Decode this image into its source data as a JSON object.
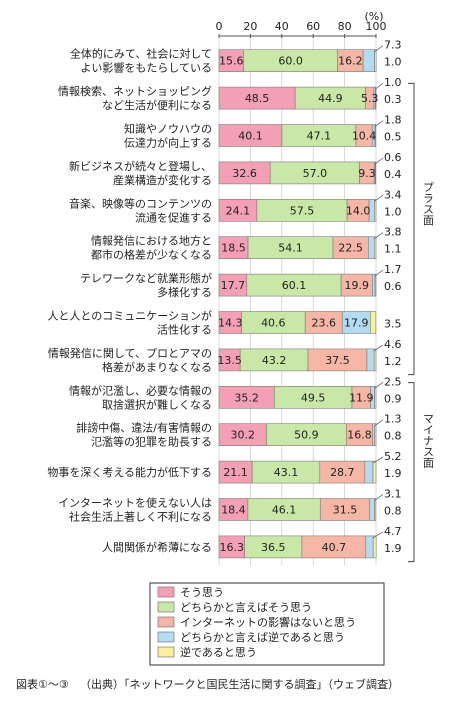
{
  "chart_data": {
    "type": "bar",
    "orientation": "horizontal",
    "stacked": true,
    "axis_unit": "(%)",
    "xlim": [
      0,
      100
    ],
    "x_ticks": [
      0,
      20,
      40,
      60,
      80,
      100
    ],
    "categories": [
      [
        "全体的にみて、社会に対して",
        "よい影響をもたらしている"
      ],
      [
        "情報検索、ネットショッピング",
        "など生活が便利になる"
      ],
      [
        "知識やノウハウの",
        "伝達力が向上する"
      ],
      [
        "新ビジネスが続々と登場し、",
        "産業構造が変化する"
      ],
      [
        "音楽、映像等のコンテンツの",
        "流通を促進する"
      ],
      [
        "情報発信における地方と",
        "都市の格差が少なくなる"
      ],
      [
        "テレワークなど就業形態が",
        "多様化する"
      ],
      [
        "人と人とのコミュニケーションが",
        "活性化する"
      ],
      [
        "情報発信に関して、プロとアマの",
        "格差があまりなくなる"
      ],
      [
        "情報が氾濫し、必要な情報の",
        "取捨選択が難しくなる"
      ],
      [
        "誹謗中傷、違法/有害情報の",
        "氾濫等の犯罪を助長する"
      ],
      [
        "物事を深く考える能力が低下する"
      ],
      [
        "インターネットを使えない人は",
        "社会生活上著しく不利になる"
      ],
      [
        "人間関係が希薄になる"
      ]
    ],
    "series": [
      {
        "name": "そう思う",
        "color": "#f4a0b4",
        "values": [
          15.6,
          48.5,
          40.1,
          32.6,
          24.1,
          18.5,
          17.7,
          14.3,
          13.5,
          35.2,
          30.2,
          21.1,
          18.4,
          16.3
        ]
      },
      {
        "name": "どちらかと言えばそう思う",
        "color": "#c9e8a8",
        "values": [
          60.0,
          44.9,
          47.1,
          57.0,
          57.5,
          54.1,
          60.1,
          40.6,
          43.2,
          49.5,
          50.9,
          43.1,
          46.1,
          36.5
        ]
      },
      {
        "name": "インターネットの影響はないと思う",
        "color": "#f6b6a6",
        "values": [
          16.2,
          5.3,
          10.4,
          9.3,
          14.0,
          22.5,
          19.9,
          23.6,
          37.5,
          11.9,
          16.8,
          28.7,
          31.5,
          40.7
        ]
      },
      {
        "name": "どちらかと言えば逆であると思う",
        "color": "#b4dcf0",
        "values": [
          7.3,
          1.0,
          1.8,
          0.6,
          3.4,
          3.8,
          1.7,
          17.9,
          4.6,
          2.5,
          1.3,
          5.2,
          3.1,
          4.7
        ]
      },
      {
        "name": "逆であると思う",
        "color": "#f8f0a0",
        "values": [
          1.0,
          0.3,
          0.5,
          0.4,
          1.0,
          1.1,
          0.6,
          3.5,
          1.2,
          0.9,
          0.8,
          1.9,
          0.8,
          1.9
        ]
      }
    ],
    "value_labels": [
      [
        "15.6",
        "60.0",
        "16.2",
        "7.3",
        "1.0"
      ],
      [
        "48.5",
        "44.9",
        "5.3",
        "1.0",
        "0.3"
      ],
      [
        "40.1",
        "47.1",
        "10.4",
        "1.8",
        "0.5"
      ],
      [
        "32.6",
        "57.0",
        "9.3",
        "0.6",
        "0.4"
      ],
      [
        "24.1",
        "57.5",
        "14.0",
        "3.4",
        "1.0"
      ],
      [
        "18.5",
        "54.1",
        "22.5",
        "3.8",
        "1.1"
      ],
      [
        "17.7",
        "60.1",
        "19.9",
        "1.7",
        "0.6"
      ],
      [
        "14.3",
        "40.6",
        "23.6",
        "17.9",
        "3.5"
      ],
      [
        "13.5",
        "43.2",
        "37.5",
        "4.6",
        "1.2"
      ],
      [
        "35.2",
        "49.5",
        "11.9",
        "2.5",
        "0.9"
      ],
      [
        "30.2",
        "50.9",
        "16.8",
        "1.3",
        "0.8"
      ],
      [
        "21.1",
        "43.1",
        "28.7",
        "5.2",
        "1.9"
      ],
      [
        "18.4",
        "46.1",
        "31.5",
        "3.1",
        "0.8"
      ],
      [
        "16.3",
        "36.5",
        "40.7",
        "4.7",
        "1.9"
      ]
    ],
    "groups": [
      {
        "label": "プラス面",
        "start": 1,
        "end": 8
      },
      {
        "label": "マイナス面",
        "start": 9,
        "end": 13
      }
    ],
    "legend_position": "bottom"
  },
  "caption": {
    "figure": "図表①〜③",
    "source": "（出典）「ネットワークと国民生活に関する調査」（ウェブ調査）"
  }
}
